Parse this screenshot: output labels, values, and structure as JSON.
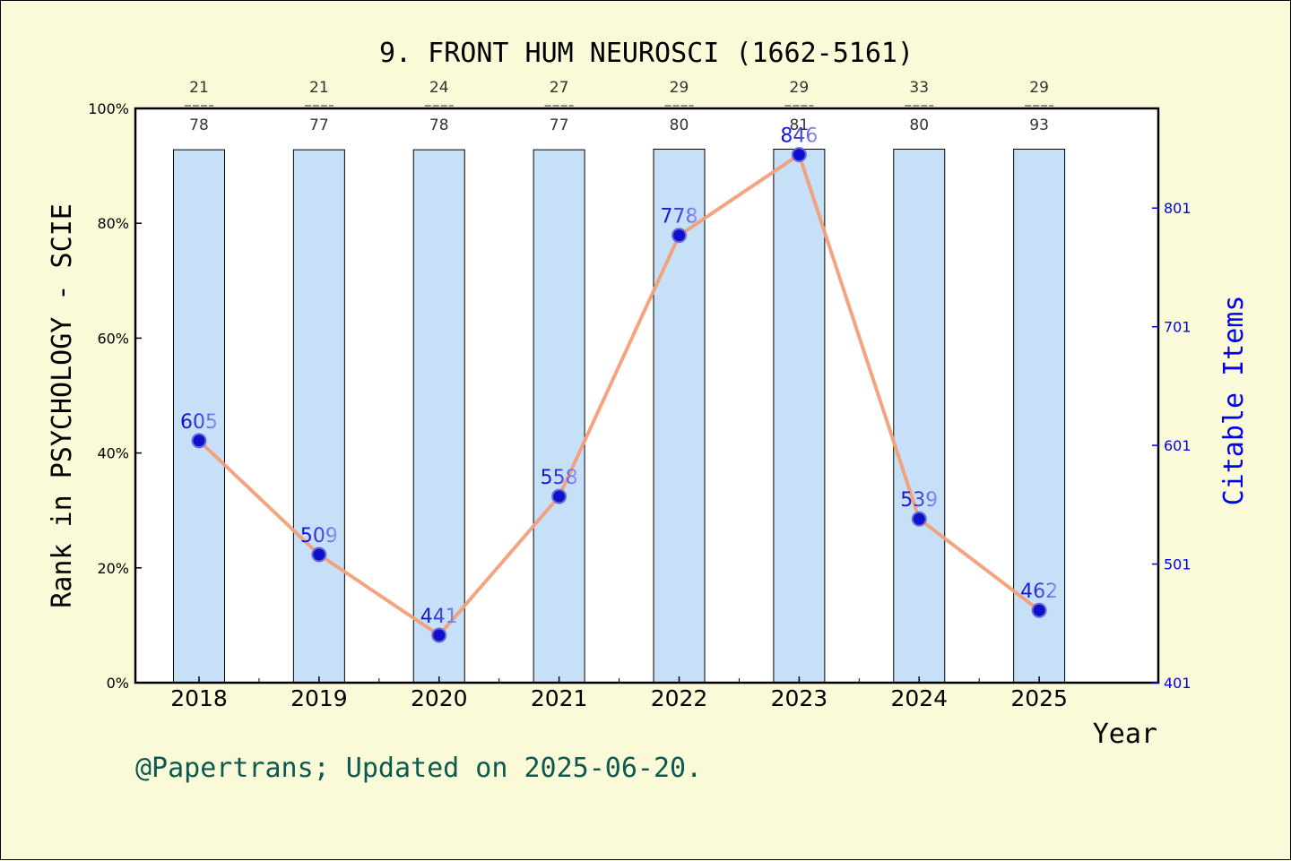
{
  "chart_data": {
    "type": "bar",
    "title": "9. FRONT HUM NEUROSCI (1662-5161)",
    "xlabel": "Year",
    "ylabel": "Rank in PSYCHOLOGY - SCIE",
    "y2label": "Citable Items",
    "categories": [
      "2018",
      "2019",
      "2020",
      "2021",
      "2022",
      "2023",
      "2024",
      "2025"
    ],
    "ylim": [
      0,
      100
    ],
    "y_ticks": [
      "0%",
      "20%",
      "40%",
      "60%",
      "80%",
      "100%"
    ],
    "y2lim": [
      401,
      885
    ],
    "y2_ticks": [
      "401",
      "501",
      "601",
      "701",
      "801"
    ],
    "series": [
      {
        "kind": "bar",
        "values": [
          92.8,
          92.8,
          92.8,
          92.8,
          92.9,
          92.9,
          92.9,
          92.9
        ],
        "color": "#c5e0f7"
      },
      {
        "kind": "line",
        "axis": "right",
        "values": [
          605,
          509,
          441,
          558,
          778,
          846,
          539,
          462
        ],
        "color": "#f4a07a"
      }
    ],
    "rank_fractions": [
      {
        "num": "21",
        "den": "78"
      },
      {
        "num": "21",
        "den": "77"
      },
      {
        "num": "24",
        "den": "78"
      },
      {
        "num": "27",
        "den": "77"
      },
      {
        "num": "29",
        "den": "80"
      },
      {
        "num": "29",
        "den": "81"
      },
      {
        "num": "33",
        "den": "80"
      },
      {
        "num": "29",
        "den": "93"
      }
    ],
    "colors": {
      "background": "#fafad8",
      "plot_background": "#ffffff",
      "bar": "#c5e0f7",
      "line": "#f4a07a",
      "marker": "#1010c8",
      "right_axis": "#0000ee",
      "footer": "#0b5a4f"
    }
  },
  "footer": "@Papertrans; Updated on 2025-06-20."
}
